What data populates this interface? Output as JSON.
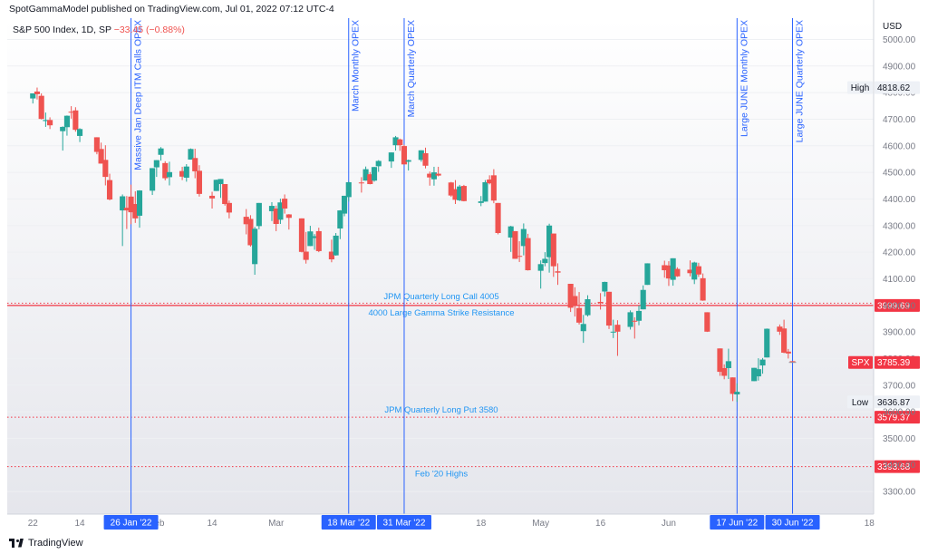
{
  "publisher_line": "SpotGammaModel published on TradingView.com, Jul 01, 2022 07:12 UTC-4",
  "legend": {
    "symbol_text": "S&P 500 Index, 1D, SP",
    "change_text": "−33.45 (−0.88%)"
  },
  "footer": {
    "logo_text": "TradingView"
  },
  "colors": {
    "up": "#26a69a",
    "down": "#ef5350",
    "vline": "#2962ff",
    "vline_text": "#2962ff",
    "hline": "#f23645",
    "annotation_text": "#2196f3"
  },
  "chart_data": {
    "type": "candlestick",
    "y_axis": {
      "unit": "USD",
      "ticks": [
        3300,
        3400,
        3500,
        3600,
        3700,
        3800,
        3900,
        4000,
        4100,
        4200,
        4300,
        4400,
        4500,
        4600,
        4700,
        4800,
        4900,
        5000
      ],
      "tick_labels": [
        "3300.00",
        "3400.00",
        "3500.00",
        "3600.00",
        "3700.00",
        "3800.00",
        "3900.00",
        "4000.00",
        "4100.00",
        "4200.00",
        "4300.00",
        "4400.00",
        "4500.00",
        "4600.00",
        "4700.00",
        "4800.00",
        "4900.00",
        "5000.00"
      ],
      "range": [
        3215,
        5080
      ]
    },
    "x_axis": {
      "tick_labels": [
        {
          "label": "22",
          "date": "2022-01-03"
        },
        {
          "label": "14",
          "date": "2022-01-14"
        },
        {
          "label": "Feb",
          "date": "2022-02-01"
        },
        {
          "label": "14",
          "date": "2022-02-14"
        },
        {
          "label": "Mar",
          "date": "2022-03-01"
        },
        {
          "label": "14",
          "date": "2022-03-14"
        },
        {
          "label": "18",
          "date": "2022-04-18"
        },
        {
          "label": "May",
          "date": "2022-05-02"
        },
        {
          "label": "16",
          "date": "2022-05-16"
        },
        {
          "label": "Jun",
          "date": "2022-06-01"
        },
        {
          "label": "14",
          "date": "2022-06-14"
        },
        {
          "label": "18",
          "date": "2022-07-18"
        }
      ],
      "range": [
        "2021-12-28",
        "2022-07-19"
      ]
    },
    "markers": [
      {
        "label": "High",
        "value": "4818.62"
      },
      {
        "label": "Low",
        "value": "3636.87"
      },
      {
        "label": "SPX",
        "value": "3785.39"
      }
    ],
    "horizontal_lines": [
      {
        "price": 3999.69,
        "label": "3999.69",
        "style": "solid-dotted",
        "annotations": [
          "JPM Quarterly Long Call 4005",
          "4000 Large Gamma Strike Resistance"
        ]
      },
      {
        "price": 3579.37,
        "label": "3579.37",
        "style": "dotted",
        "annotations": [
          "JPM Quarterly Long Put 3580"
        ]
      },
      {
        "price": 3393.68,
        "label": "3393.68",
        "style": "dotted",
        "annotations": [
          "Feb '20 Highs"
        ]
      }
    ],
    "vertical_lines": [
      {
        "date": "2022-01-26",
        "label": "26 Jan '22",
        "text": "Massive Jan Deep ITM Calls OPEX"
      },
      {
        "date": "2022-03-18",
        "label": "18 Mar '22",
        "text": "March Monthly OPEX"
      },
      {
        "date": "2022-03-31",
        "label": "31 Mar '22",
        "text": "March Quarterly OPEX"
      },
      {
        "date": "2022-06-17",
        "label": "17 Jun '22",
        "text": "Large JUNE Monthly OPEX"
      },
      {
        "date": "2022-06-30",
        "label": "30 Jun '22",
        "text": "Large JUNE Quarterly OPEX"
      }
    ],
    "ohlc": [
      [
        "2022-01-03",
        4778,
        4797,
        4759,
        4797
      ],
      [
        "2022-01-04",
        4804,
        4819,
        4774,
        4794
      ],
      [
        "2022-01-05",
        4788,
        4797,
        4699,
        4701
      ],
      [
        "2022-01-06",
        4693,
        4725,
        4671,
        4697
      ],
      [
        "2022-01-07",
        4697,
        4707,
        4663,
        4677
      ],
      [
        "2022-01-10",
        4655,
        4673,
        4582,
        4671
      ],
      [
        "2022-01-11",
        4670,
        4714,
        4638,
        4713
      ],
      [
        "2022-01-12",
        4728,
        4749,
        4702,
        4726
      ],
      [
        "2022-01-13",
        4733,
        4745,
        4653,
        4660
      ],
      [
        "2022-01-14",
        4637,
        4666,
        4614,
        4663
      ],
      [
        "2022-01-18",
        4632,
        4632,
        4568,
        4577
      ],
      [
        "2022-01-19",
        4588,
        4612,
        4533,
        4533
      ],
      [
        "2022-01-20",
        4547,
        4602,
        4451,
        4483
      ],
      [
        "2022-01-21",
        4471,
        4495,
        4395,
        4398
      ],
      [
        "2022-01-24",
        4357,
        4417,
        4223,
        4410
      ],
      [
        "2022-01-25",
        4367,
        4411,
        4287,
        4357
      ],
      [
        "2022-01-26",
        4409,
        4454,
        4305,
        4350
      ],
      [
        "2022-01-27",
        4381,
        4429,
        4310,
        4327
      ],
      [
        "2022-01-28",
        4337,
        4433,
        4292,
        4432
      ],
      [
        "2022-01-31",
        4431,
        4516,
        4415,
        4516
      ],
      [
        "2022-02-01",
        4519,
        4546,
        4483,
        4546
      ],
      [
        "2022-02-02",
        4566,
        4595,
        4544,
        4590
      ],
      [
        "2022-02-03",
        4535,
        4542,
        4470,
        4478
      ],
      [
        "2022-02-04",
        4482,
        4540,
        4451,
        4501
      ],
      [
        "2022-02-07",
        4505,
        4521,
        4471,
        4484
      ],
      [
        "2022-02-08",
        4480,
        4531,
        4465,
        4522
      ],
      [
        "2022-02-09",
        4548,
        4590,
        4548,
        4588
      ],
      [
        "2022-02-10",
        4554,
        4589,
        4478,
        4504
      ],
      [
        "2022-02-11",
        4506,
        4527,
        4409,
        4419
      ],
      [
        "2022-02-14",
        4412,
        4427,
        4364,
        4402
      ],
      [
        "2022-02-15",
        4430,
        4473,
        4430,
        4472
      ],
      [
        "2022-02-16",
        4456,
        4475,
        4404,
        4475
      ],
      [
        "2022-02-17",
        4456,
        4456,
        4375,
        4381
      ],
      [
        "2022-02-18",
        4385,
        4394,
        4327,
        4349
      ],
      [
        "2022-02-22",
        4333,
        4362,
        4267,
        4305
      ],
      [
        "2022-02-23",
        4325,
        4339,
        4221,
        4226
      ],
      [
        "2022-02-24",
        4155,
        4295,
        4115,
        4288
      ],
      [
        "2022-02-25",
        4298,
        4385,
        4286,
        4385
      ],
      [
        "2022-02-28",
        4354,
        4388,
        4317,
        4374
      ],
      [
        "2022-03-01",
        4364,
        4375,
        4279,
        4306
      ],
      [
        "2022-03-02",
        4322,
        4401,
        4306,
        4387
      ],
      [
        "2022-03-03",
        4401,
        4417,
        4345,
        4364
      ],
      [
        "2022-03-04",
        4342,
        4343,
        4285,
        4329
      ],
      [
        "2022-03-07",
        4327,
        4327,
        4199,
        4201
      ],
      [
        "2022-03-08",
        4202,
        4276,
        4157,
        4171
      ],
      [
        "2022-03-09",
        4223,
        4299,
        4223,
        4278
      ],
      [
        "2022-03-10",
        4253,
        4268,
        4209,
        4260
      ],
      [
        "2022-03-11",
        4279,
        4292,
        4200,
        4204
      ],
      [
        "2022-03-14",
        4202,
        4247,
        4162,
        4173
      ],
      [
        "2022-03-15",
        4188,
        4272,
        4187,
        4262
      ],
      [
        "2022-03-16",
        4289,
        4358,
        4249,
        4357
      ],
      [
        "2022-03-17",
        4345,
        4412,
        4335,
        4412
      ],
      [
        "2022-03-18",
        4407,
        4465,
        4390,
        4463
      ],
      [
        "2022-03-21",
        4462,
        4482,
        4424,
        4461
      ],
      [
        "2022-03-22",
        4469,
        4522,
        4469,
        4512
      ],
      [
        "2022-03-23",
        4493,
        4501,
        4455,
        4456
      ],
      [
        "2022-03-24",
        4469,
        4521,
        4465,
        4520
      ],
      [
        "2022-03-25",
        4523,
        4546,
        4502,
        4543
      ],
      [
        "2022-03-28",
        4541,
        4575,
        4517,
        4575
      ],
      [
        "2022-03-29",
        4602,
        4637,
        4582,
        4632
      ],
      [
        "2022-03-30",
        4624,
        4627,
        4581,
        4602
      ],
      [
        "2022-03-31",
        4599,
        4604,
        4530,
        4530
      ],
      [
        "2022-04-01",
        4540,
        4548,
        4507,
        4546
      ],
      [
        "2022-04-04",
        4547,
        4583,
        4540,
        4583
      ],
      [
        "2022-04-05",
        4572,
        4593,
        4515,
        4525
      ],
      [
        "2022-04-06",
        4495,
        4503,
        4450,
        4481
      ],
      [
        "2022-04-07",
        4474,
        4521,
        4450,
        4500
      ],
      [
        "2022-04-08",
        4495,
        4521,
        4485,
        4488
      ],
      [
        "2022-04-11",
        4462,
        4464,
        4408,
        4413
      ],
      [
        "2022-04-12",
        4437,
        4471,
        4381,
        4397
      ],
      [
        "2022-04-13",
        4395,
        4453,
        4392,
        4447
      ],
      [
        "2022-04-14",
        4449,
        4453,
        4391,
        4392
      ],
      [
        "2022-04-18",
        4385,
        4411,
        4373,
        4391
      ],
      [
        "2022-04-19",
        4390,
        4471,
        4390,
        4463
      ],
      [
        "2022-04-20",
        4473,
        4489,
        4455,
        4459
      ],
      [
        "2022-04-21",
        4489,
        4512,
        4384,
        4394
      ],
      [
        "2022-04-22",
        4385,
        4385,
        4267,
        4272
      ],
      [
        "2022-04-25",
        4255,
        4299,
        4201,
        4297
      ],
      [
        "2022-04-26",
        4279,
        4279,
        4175,
        4175
      ],
      [
        "2022-04-27",
        4186,
        4241,
        4163,
        4183
      ],
      [
        "2022-04-28",
        4223,
        4308,
        4188,
        4287
      ],
      [
        "2022-04-29",
        4253,
        4269,
        4131,
        4132
      ],
      [
        "2022-05-02",
        4130,
        4169,
        4063,
        4155
      ],
      [
        "2022-05-03",
        4159,
        4200,
        4147,
        4175
      ],
      [
        "2022-05-04",
        4181,
        4307,
        4123,
        4300
      ],
      [
        "2022-05-05",
        4270,
        4270,
        4107,
        4147
      ],
      [
        "2022-05-06",
        4128,
        4158,
        4077,
        4123
      ],
      [
        "2022-05-09",
        4081,
        4081,
        3975,
        3991
      ],
      [
        "2022-05-10",
        4035,
        4068,
        3958,
        4001
      ],
      [
        "2022-05-11",
        3990,
        4050,
        3928,
        3935
      ],
      [
        "2022-05-12",
        3903,
        3964,
        3859,
        3930
      ],
      [
        "2022-05-13",
        3963,
        4038,
        3958,
        4023
      ],
      [
        "2022-05-16",
        4013,
        4046,
        3984,
        4008
      ],
      [
        "2022-05-17",
        4052,
        4089,
        4033,
        4088
      ],
      [
        "2022-05-18",
        4051,
        4051,
        3911,
        3924
      ],
      [
        "2022-05-19",
        3900,
        3946,
        3877,
        3901
      ],
      [
        "2022-05-20",
        3927,
        3944,
        3810,
        3901
      ],
      [
        "2022-05-23",
        3919,
        3981,
        3909,
        3974
      ],
      [
        "2022-05-24",
        3942,
        3955,
        3875,
        3941
      ],
      [
        "2022-05-25",
        3942,
        3999,
        3925,
        3979
      ],
      [
        "2022-05-26",
        3985,
        4075,
        3985,
        4058
      ],
      [
        "2022-05-27",
        4077,
        4158,
        4077,
        4158
      ],
      [
        "2022-05-31",
        4151,
        4168,
        4104,
        4132
      ],
      [
        "2022-06-01",
        4150,
        4166,
        4073,
        4101
      ],
      [
        "2022-06-02",
        4096,
        4177,
        4074,
        4177
      ],
      [
        "2022-06-03",
        4137,
        4143,
        4107,
        4109
      ],
      [
        "2022-06-06",
        4134,
        4169,
        4109,
        4121
      ],
      [
        "2022-06-07",
        4097,
        4164,
        4080,
        4161
      ],
      [
        "2022-06-08",
        4147,
        4160,
        4107,
        4116
      ],
      [
        "2022-06-09",
        4102,
        4120,
        4017,
        4018
      ],
      [
        "2022-06-10",
        3974,
        3974,
        3900,
        3901
      ],
      [
        "2022-06-13",
        3838,
        3838,
        3735,
        3750
      ],
      [
        "2022-06-14",
        3764,
        3778,
        3722,
        3735
      ],
      [
        "2022-06-15",
        3764,
        3837,
        3723,
        3790
      ],
      [
        "2022-06-16",
        3729,
        3729,
        3640,
        3667
      ],
      [
        "2022-06-17",
        3665,
        3707,
        3637,
        3675
      ],
      [
        "2022-06-21",
        3715,
        3765,
        3715,
        3765
      ],
      [
        "2022-06-22",
        3733,
        3801,
        3717,
        3760
      ],
      [
        "2022-06-23",
        3774,
        3802,
        3743,
        3796
      ],
      [
        "2022-06-24",
        3804,
        3913,
        3804,
        3912
      ],
      [
        "2022-06-27",
        3920,
        3928,
        3889,
        3901
      ],
      [
        "2022-06-28",
        3913,
        3946,
        3820,
        3822
      ],
      [
        "2022-06-29",
        3826,
        3836,
        3800,
        3819
      ],
      [
        "2022-06-30",
        3790,
        3790,
        3785,
        3785
      ]
    ]
  }
}
